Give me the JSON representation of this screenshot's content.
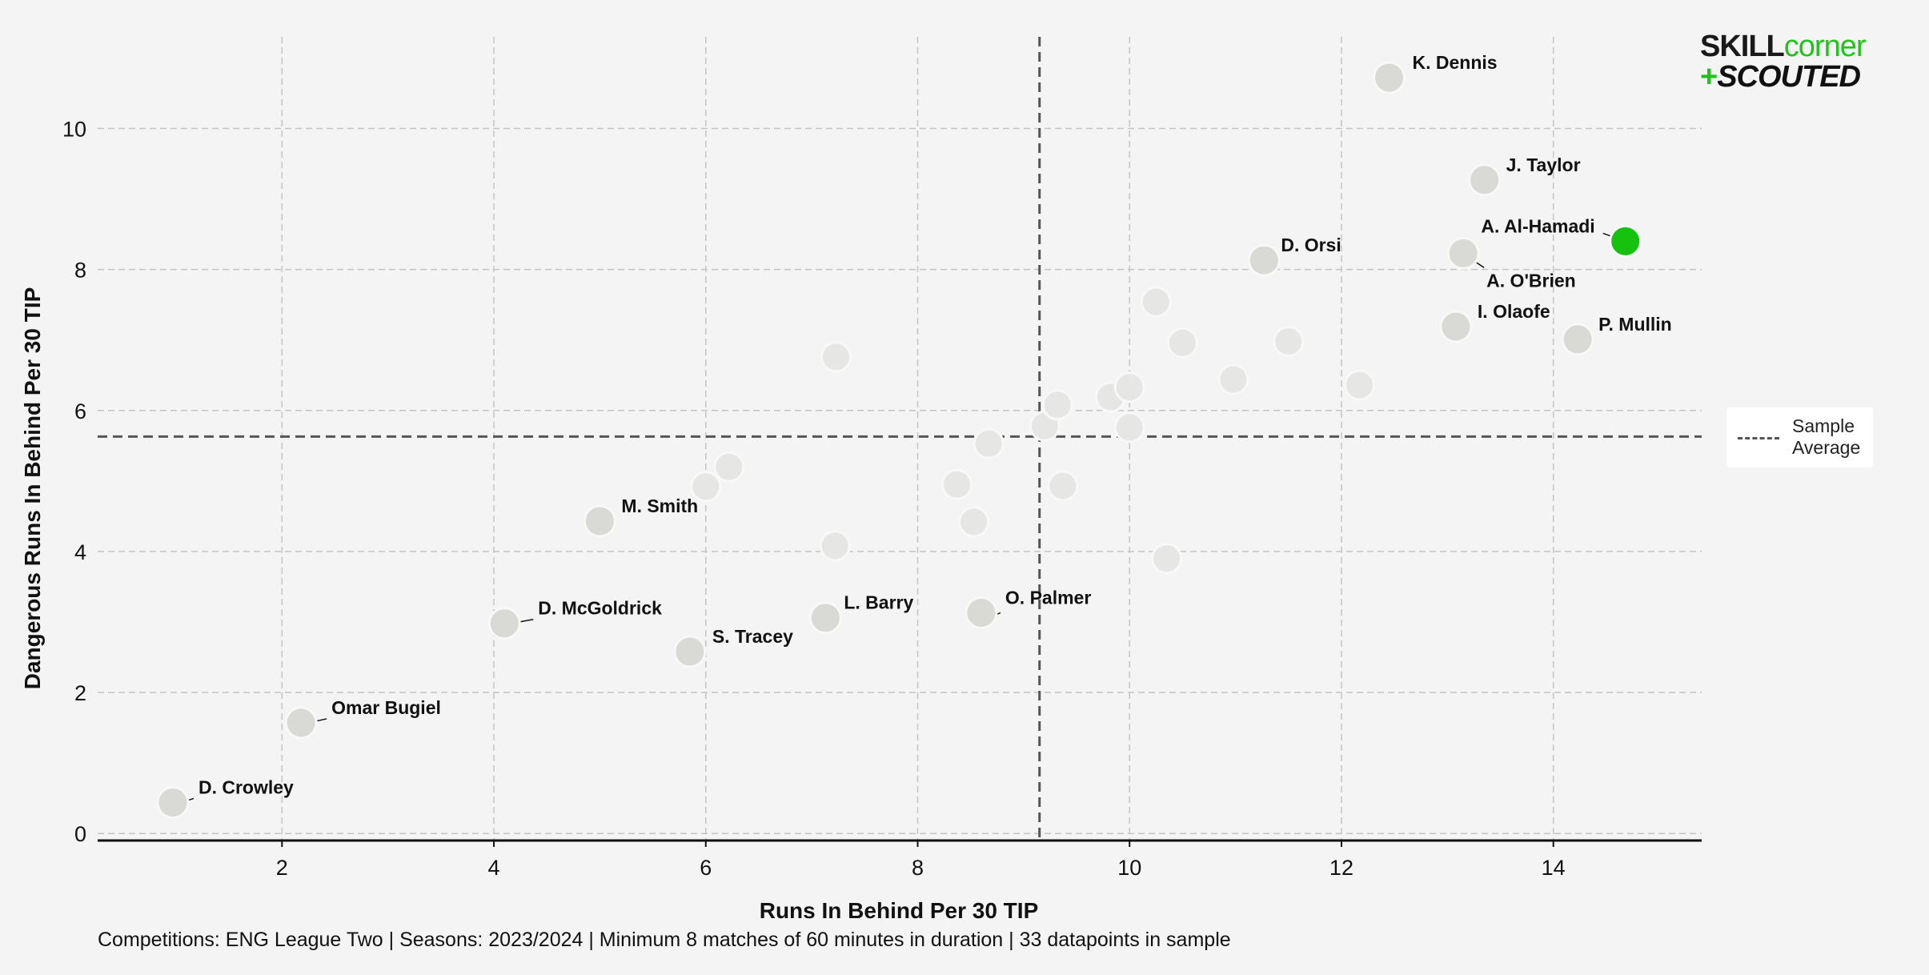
{
  "chart_data": {
    "type": "scatter",
    "xlabel": "Runs In Behind Per 30 TIP",
    "ylabel": "Dangerous Runs In Behind Per 30 TIP",
    "xlim": [
      0.26,
      15.4
    ],
    "ylim": [
      -0.1,
      11.3
    ],
    "x_ticks": [
      2,
      4,
      6,
      8,
      10,
      12,
      14
    ],
    "y_ticks": [
      0,
      2,
      4,
      6,
      8,
      10
    ],
    "grid": true,
    "averages": {
      "x": 9.15,
      "y": 5.63
    },
    "legend": {
      "position": "right",
      "entries": [
        "Sample Average"
      ]
    },
    "colors": {
      "highlight": "#17c20f",
      "named": "#d9d9d6",
      "background_points": "#e6e6e4",
      "average_line": "#555555"
    },
    "labeled_points": [
      {
        "name": "K. Dennis",
        "x": 12.45,
        "y": 10.72
      },
      {
        "name": "J. Taylor",
        "x": 13.35,
        "y": 9.27
      },
      {
        "name": "A. Al-Hamadi",
        "x": 14.68,
        "y": 8.4,
        "highlight": true
      },
      {
        "name": "A. O'Brien",
        "x": 13.15,
        "y": 8.23
      },
      {
        "name": "D. Orsi",
        "x": 11.27,
        "y": 8.13
      },
      {
        "name": "I. Olaofe",
        "x": 13.08,
        "y": 7.19
      },
      {
        "name": "P. Mullin",
        "x": 14.23,
        "y": 7.01
      },
      {
        "name": "M. Smith",
        "x": 5.0,
        "y": 4.43
      },
      {
        "name": "D. McGoldrick",
        "x": 4.1,
        "y": 2.98
      },
      {
        "name": "S. Tracey",
        "x": 5.85,
        "y": 2.58
      },
      {
        "name": "L. Barry",
        "x": 7.13,
        "y": 3.06
      },
      {
        "name": "O. Palmer",
        "x": 8.6,
        "y": 3.13
      },
      {
        "name": "Omar Bugiel",
        "x": 2.18,
        "y": 1.57
      },
      {
        "name": "D. Crowley",
        "x": 0.97,
        "y": 0.44
      }
    ],
    "other_points": [
      {
        "x": 7.23,
        "y": 6.76
      },
      {
        "x": 6.0,
        "y": 4.92
      },
      {
        "x": 6.22,
        "y": 5.2
      },
      {
        "x": 7.22,
        "y": 4.08
      },
      {
        "x": 8.37,
        "y": 4.95
      },
      {
        "x": 8.67,
        "y": 5.53
      },
      {
        "x": 8.53,
        "y": 4.42
      },
      {
        "x": 9.2,
        "y": 5.78
      },
      {
        "x": 9.32,
        "y": 6.08
      },
      {
        "x": 9.37,
        "y": 4.93
      },
      {
        "x": 9.82,
        "y": 6.19
      },
      {
        "x": 10.0,
        "y": 6.33
      },
      {
        "x": 10.0,
        "y": 5.76
      },
      {
        "x": 10.25,
        "y": 7.54
      },
      {
        "x": 10.5,
        "y": 6.96
      },
      {
        "x": 10.98,
        "y": 6.44
      },
      {
        "x": 11.5,
        "y": 6.98
      },
      {
        "x": 12.17,
        "y": 6.36
      },
      {
        "x": 10.35,
        "y": 3.9
      }
    ]
  },
  "legend_label": "Sample Average",
  "footnote": "Competitions: ENG League Two | Seasons: 2023/2024 | Minimum 8 matches of 60 minutes in duration | 33 datapoints in sample",
  "logo": {
    "word1": "SKILL",
    "word2": "corner",
    "plus": "+",
    "word3": "SCOUTED"
  }
}
